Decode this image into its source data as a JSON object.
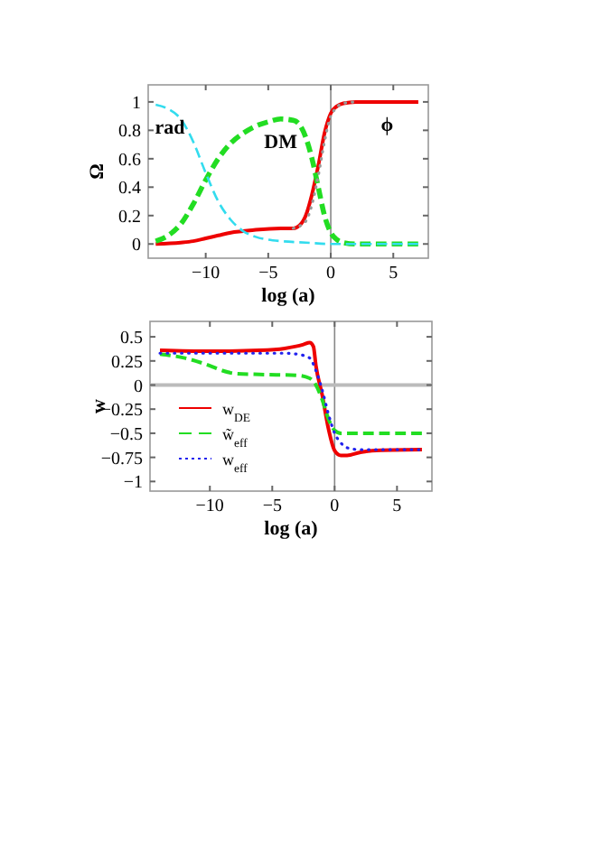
{
  "chart_data": [
    {
      "type": "line",
      "ylabel": "Ω",
      "xlabel": "log (a)",
      "xlim": [
        -14.6,
        7.8
      ],
      "ylim": [
        -0.1,
        1.12
      ],
      "xticks": [
        -10,
        -5,
        0,
        5
      ],
      "yticks": [
        0,
        0.2,
        0.4,
        0.6,
        0.8,
        1
      ],
      "grid": false,
      "legend": false,
      "ref_lines": [
        {
          "axis": "x",
          "value": 0,
          "color": "#888888"
        }
      ],
      "series": [
        {
          "name": "rad",
          "color": "#33dcee",
          "line_style": "dashed",
          "x": [
            -14,
            -13,
            -12,
            -11,
            -10,
            -9,
            -8,
            -7,
            -6,
            -5,
            -4,
            -2,
            0,
            7
          ],
          "values": [
            0.98,
            0.95,
            0.88,
            0.72,
            0.5,
            0.3,
            0.17,
            0.09,
            0.05,
            0.03,
            0.02,
            0.01,
            0,
            0
          ]
        },
        {
          "name": "DM",
          "color": "#22dd22",
          "line_style": "dashed",
          "x": [
            -14,
            -13,
            -12,
            -11,
            -10,
            -9,
            -8,
            -7,
            -6,
            -5,
            -4,
            -3,
            -2.5,
            -2,
            -1.5,
            -1,
            -0.5,
            0,
            0.5,
            1,
            2,
            7
          ],
          "values": [
            0.02,
            0.06,
            0.14,
            0.28,
            0.45,
            0.6,
            0.71,
            0.78,
            0.83,
            0.86,
            0.88,
            0.87,
            0.84,
            0.75,
            0.6,
            0.4,
            0.2,
            0.08,
            0.03,
            0.01,
            0,
            0
          ]
        },
        {
          "color": "#999999",
          "line_style": "dotted",
          "x": [
            -3,
            -2,
            -1.5,
            -1,
            -0.5,
            0,
            1,
            2
          ],
          "values": [
            0.11,
            0.16,
            0.28,
            0.48,
            0.72,
            0.9,
            0.99,
            1
          ]
        },
        {
          "name": "ϕ",
          "color": "#ee0000",
          "line_style": "solid",
          "x": [
            -14,
            -12,
            -11,
            -10,
            -9,
            -8,
            -7,
            -6,
            -4,
            -3,
            -2.5,
            -2,
            -1.5,
            -1,
            -0.5,
            0,
            0.5,
            1,
            2,
            7
          ],
          "values": [
            0,
            0.01,
            0.02,
            0.04,
            0.06,
            0.08,
            0.09,
            0.1,
            0.11,
            0.11,
            0.13,
            0.2,
            0.35,
            0.55,
            0.78,
            0.92,
            0.97,
            0.99,
            1,
            1
          ]
        }
      ]
    },
    {
      "type": "line",
      "ylabel": "w",
      "xlabel": "log (a)",
      "xlim": [
        -14.8,
        7.8
      ],
      "ylim": [
        -1.1,
        0.66
      ],
      "xticks": [
        -10,
        -5,
        0,
        5
      ],
      "yticks": [
        -1,
        -0.75,
        -0.5,
        -0.25,
        0,
        0.25,
        0.5
      ],
      "grid": false,
      "legend": "bottom left",
      "ref_lines": [
        {
          "axis": "x",
          "value": 0,
          "color": "#888888"
        },
        {
          "axis": "y",
          "value": 0,
          "color": "#bbbbbb"
        }
      ],
      "series": [
        {
          "name": "w$_{DE}$",
          "color": "#ee0000",
          "line_style": "solid",
          "x": [
            -14,
            -10,
            -6,
            -4,
            -2.5,
            -2,
            -1.7,
            -1.5,
            -1,
            -0.5,
            0,
            0.5,
            1,
            2,
            3,
            7
          ],
          "values": [
            0.36,
            0.35,
            0.36,
            0.38,
            0.42,
            0.44,
            0.4,
            0.2,
            -0.1,
            -0.45,
            -0.68,
            -0.73,
            -0.73,
            -0.7,
            -0.68,
            -0.67
          ]
        },
        {
          "name": "w̃$_{eff}$",
          "color": "#22dd22",
          "line_style": "dashed",
          "x": [
            -14,
            -12,
            -10,
            -9,
            -8,
            -6,
            -3,
            -2,
            -1.5,
            -1,
            -0.5,
            0,
            0.5,
            7
          ],
          "values": [
            0.32,
            0.28,
            0.2,
            0.15,
            0.12,
            0.11,
            0.1,
            0.07,
            0,
            -0.15,
            -0.35,
            -0.47,
            -0.5,
            -0.5
          ]
        },
        {
          "name": "w$_{eff}$",
          "color": "#2222ee",
          "line_style": "dotted",
          "x": [
            -14,
            -4,
            -3,
            -2,
            -1.5,
            -1,
            -0.5,
            0,
            0.5,
            1,
            2,
            7
          ],
          "values": [
            0.33,
            0.33,
            0.32,
            0.28,
            0.15,
            -0.05,
            -0.3,
            -0.5,
            -0.6,
            -0.65,
            -0.67,
            -0.67
          ]
        }
      ]
    }
  ]
}
